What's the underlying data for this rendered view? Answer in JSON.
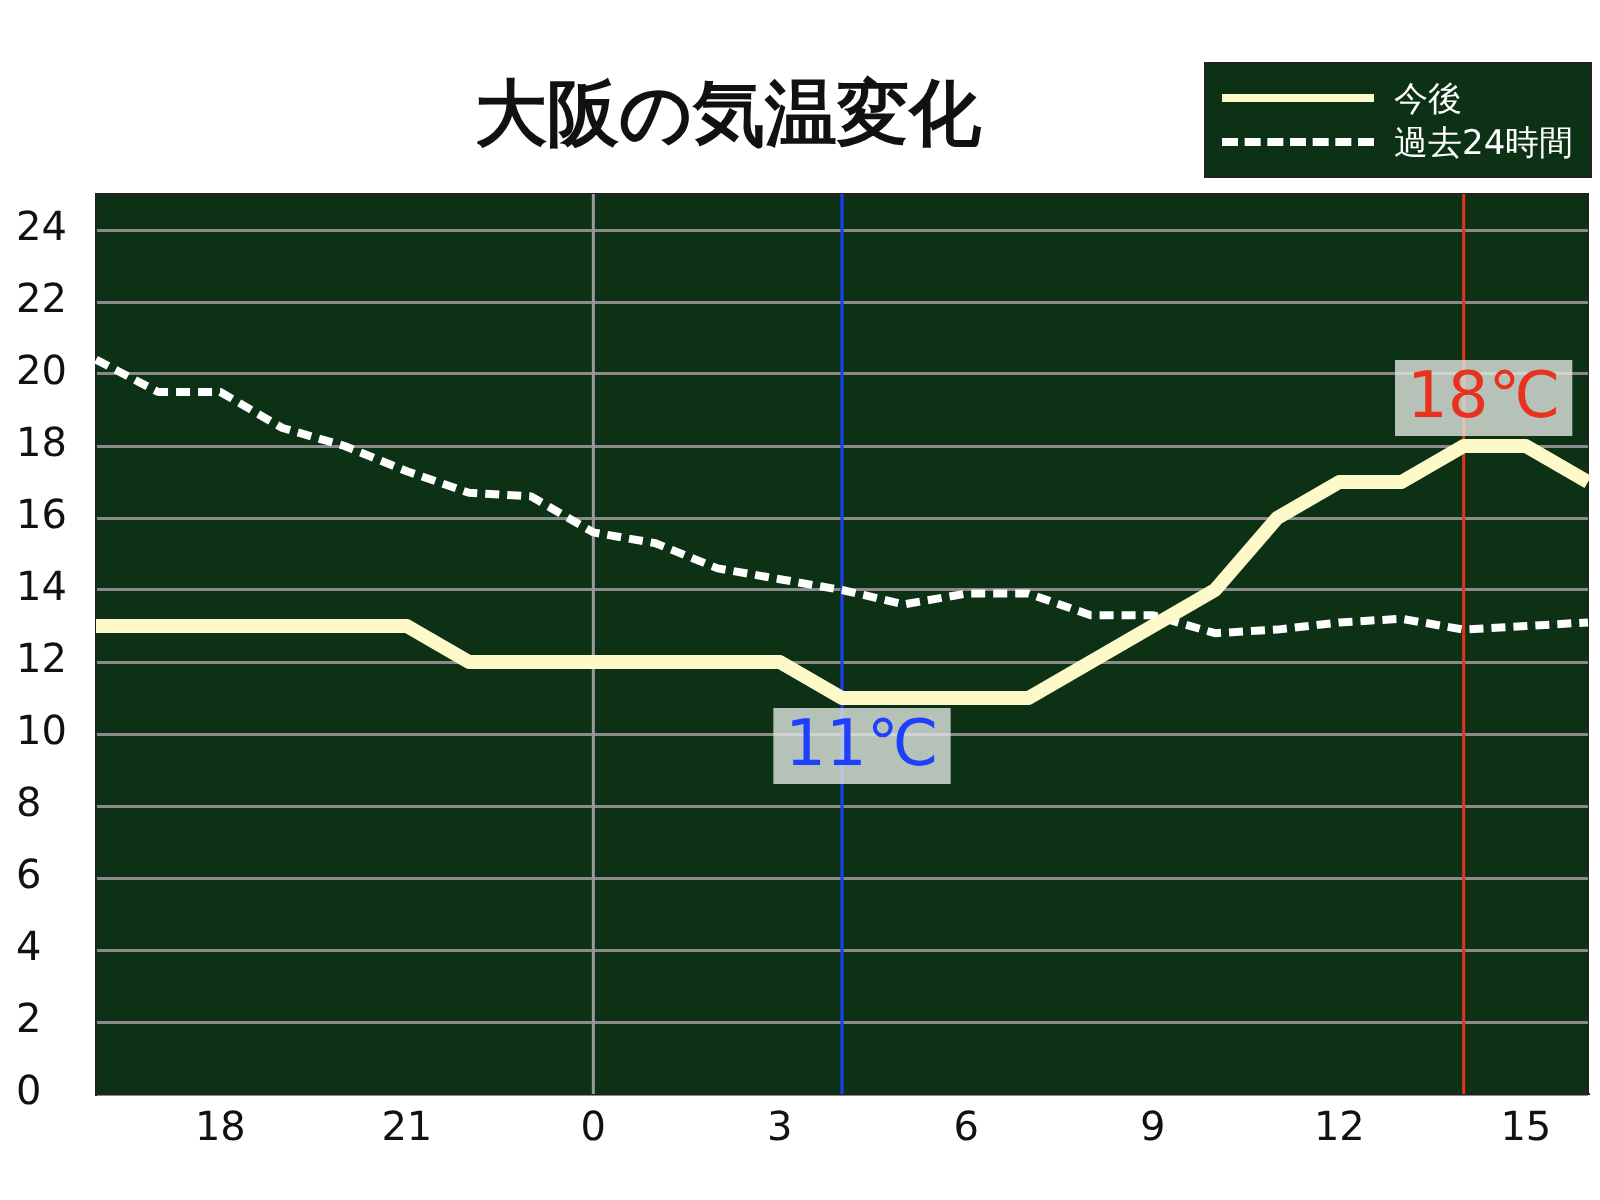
{
  "chart_data": {
    "type": "line",
    "title": "大阪の気温変化",
    "categories": [
      null,
      null,
      "18",
      null,
      null,
      "21",
      null,
      null,
      "0",
      null,
      null,
      "3",
      null,
      null,
      "6",
      null,
      null,
      "9",
      null,
      null,
      "12",
      null,
      null,
      "15",
      null
    ],
    "series": [
      {
        "name": "今後",
        "color": "#fdf9c8",
        "line_style": "solid",
        "values": [
          13,
          13,
          13,
          13,
          13,
          13,
          12,
          12,
          12,
          12,
          12,
          12,
          11,
          11,
          11,
          11,
          12,
          13,
          14,
          16,
          17,
          17,
          18,
          18,
          17
        ]
      },
      {
        "name": "過去24時間",
        "color": "#ffffff",
        "line_style": "dashed",
        "values": [
          20.4,
          19.5,
          19.5,
          18.5,
          18.0,
          17.3,
          16.7,
          16.6,
          15.6,
          15.3,
          14.6,
          14.3,
          14.0,
          13.6,
          13.9,
          13.9,
          13.3,
          13.3,
          12.8,
          12.9,
          13.1,
          13.2,
          12.9,
          13.0,
          13.1
        ]
      }
    ],
    "ylim": [
      0,
      25
    ],
    "yticks": [
      0,
      2,
      4,
      6,
      8,
      10,
      12,
      14,
      16,
      18,
      20,
      22,
      24
    ],
    "grid": "y",
    "legend": "top right",
    "marker": "none",
    "ref_lines": [
      {
        "axis": "x",
        "value": "0",
        "color": "#9a9a9a"
      }
    ],
    "annotations": [
      {
        "text": "11℃",
        "y": 11
      },
      {
        "text": "18℃",
        "y": 18
      }
    ]
  }
}
